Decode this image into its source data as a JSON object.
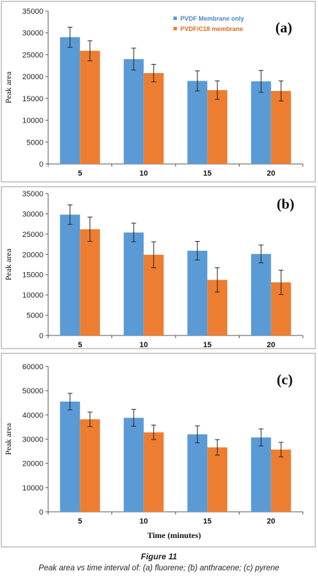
{
  "figure": {
    "title": "Figure 11",
    "caption": "Peak area vs time interval of: (a) fluorene; (b) anthracene; (c) pyrene"
  },
  "colors": {
    "series1": "#5b9bd5",
    "series2": "#ed7d31",
    "legend1_text": "#4a86c8",
    "legend2_text": "#e06a1e"
  },
  "chart_data": [
    {
      "type": "bar",
      "panel_label": "(a)",
      "categories": [
        "5",
        "10",
        "15",
        "20"
      ],
      "ylabel": "Peak area",
      "xlabel": "",
      "ylim": [
        0,
        35000
      ],
      "ytick_step": 5000,
      "yticks": [
        "0",
        "5000",
        "10000",
        "15000",
        "20000",
        "25000",
        "30000",
        "35000"
      ],
      "grid": false,
      "legend": {
        "placement": "top-right",
        "entries": [
          "PVDF Membrane only",
          "PVDF/C18 membrane"
        ]
      },
      "series": [
        {
          "name": "PVDF Membrane only",
          "values": [
            29000,
            24000,
            19000,
            18900
          ],
          "errors": [
            2300,
            2500,
            2300,
            2500
          ]
        },
        {
          "name": "PVDF/C18 membrane",
          "values": [
            25900,
            20800,
            16900,
            16700
          ],
          "errors": [
            2300,
            2000,
            2100,
            2300
          ]
        }
      ]
    },
    {
      "type": "bar",
      "panel_label": "(b)",
      "categories": [
        "5",
        "10",
        "15",
        "20"
      ],
      "ylabel": "Peak area",
      "xlabel": "",
      "ylim": [
        0,
        35000
      ],
      "ytick_step": 5000,
      "yticks": [
        "0",
        "5000",
        "10000",
        "15000",
        "20000",
        "25000",
        "30000",
        "35000"
      ],
      "grid": false,
      "series": [
        {
          "name": "PVDF Membrane only",
          "values": [
            29800,
            25400,
            20900,
            20100
          ],
          "errors": [
            2400,
            2300,
            2300,
            2200
          ]
        },
        {
          "name": "PVDF/C18 membrane",
          "values": [
            26200,
            19900,
            13700,
            13100
          ],
          "errors": [
            3000,
            3200,
            3000,
            3000
          ]
        }
      ]
    },
    {
      "type": "bar",
      "panel_label": "(c)",
      "categories": [
        "5",
        "10",
        "15",
        "20"
      ],
      "ylabel": "Peak area",
      "xlabel": "Time  (minutes)",
      "ylim": [
        0,
        60000
      ],
      "ytick_step": 10000,
      "yticks": [
        "0",
        "10000",
        "20000",
        "30000",
        "40000",
        "50000",
        "60000"
      ],
      "grid": false,
      "series": [
        {
          "name": "PVDF Membrane only",
          "values": [
            45500,
            38800,
            32000,
            30700
          ],
          "errors": [
            3400,
            3500,
            3500,
            3500
          ]
        },
        {
          "name": "PVDF/C18 membrane",
          "values": [
            38200,
            32800,
            26600,
            25700
          ],
          "errors": [
            3000,
            3000,
            3200,
            3000
          ]
        }
      ]
    }
  ]
}
